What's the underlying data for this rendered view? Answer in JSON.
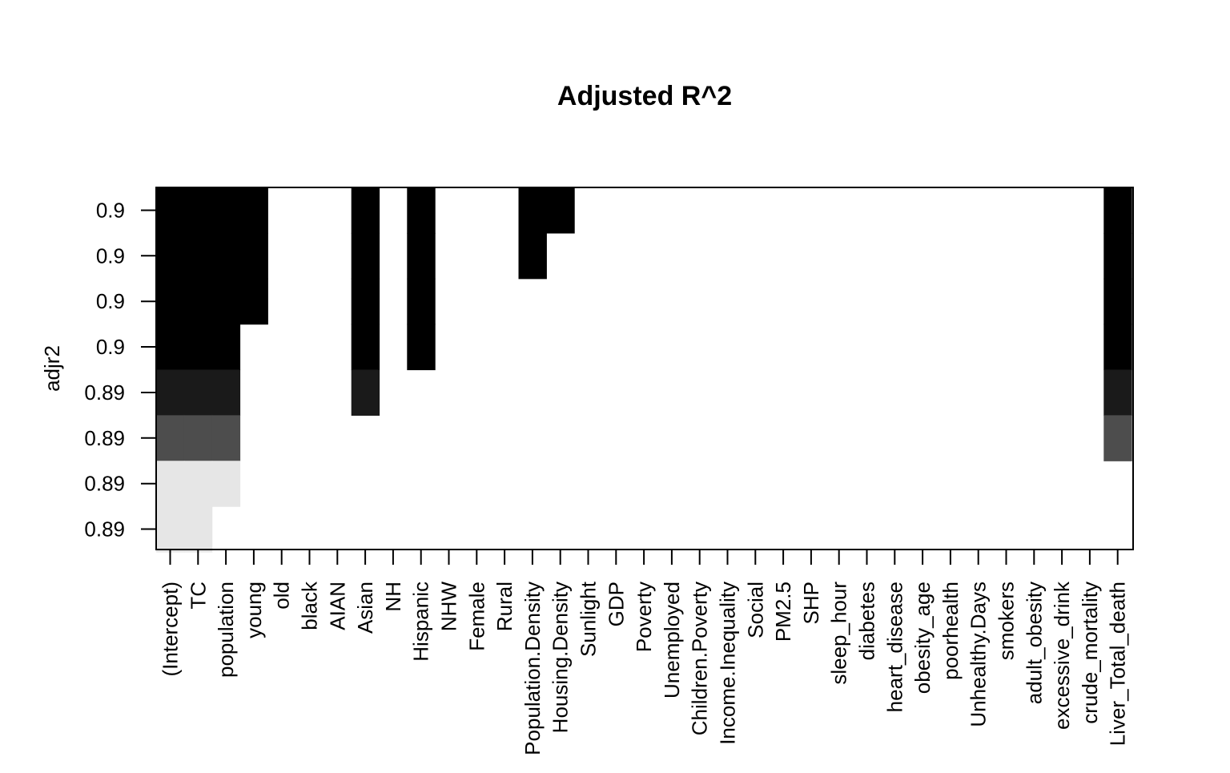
{
  "chart_data": {
    "type": "heatmap",
    "title": "Adjusted R^2",
    "xlabel": "",
    "ylabel": "adjr2",
    "x": [
      "(Intercept)",
      "TC",
      "population",
      "young",
      "old",
      "black",
      "AIAN",
      "Asian",
      "NH",
      "Hispanic",
      "NHW",
      "Female",
      "Rural",
      "Population.Density",
      "Housing.Density",
      "Sunlight",
      "GDP",
      "Poverty",
      "Unemployed",
      "Children.Poverty",
      "Income.Inequality",
      "Social",
      "PM2.5",
      "SHP",
      "sleep_hour",
      "diabetes",
      "heart_disease",
      "obesity_age",
      "poorhealth",
      "Unhealthy.Days",
      "smokers",
      "adult_obesity",
      "excessive_drink",
      "crude_mortality",
      "Liver_Total_death"
    ],
    "y_tick_labels": [
      "0.89",
      "0.89",
      "0.89",
      "0.89",
      "0.9",
      "0.9",
      "0.9",
      "0.9"
    ],
    "row_shades": [
      "#000000",
      "#000000",
      "#000000",
      "#000000",
      "#1a1a1a",
      "#4d4d4d",
      "#e6e6e6",
      "#e6e6e6"
    ],
    "models": [
      {
        "included": [
          "(Intercept)",
          "TC",
          "population",
          "young",
          "Asian",
          "Hispanic",
          "Population.Density",
          "Housing.Density",
          "Liver_Total_death"
        ]
      },
      {
        "included": [
          "(Intercept)",
          "TC",
          "population",
          "young",
          "Asian",
          "Hispanic",
          "Population.Density",
          "Liver_Total_death"
        ]
      },
      {
        "included": [
          "(Intercept)",
          "TC",
          "population",
          "young",
          "Asian",
          "Hispanic",
          "Liver_Total_death"
        ]
      },
      {
        "included": [
          "(Intercept)",
          "TC",
          "population",
          "Asian",
          "Hispanic",
          "Liver_Total_death"
        ]
      },
      {
        "included": [
          "(Intercept)",
          "TC",
          "population",
          "Asian",
          "Liver_Total_death"
        ]
      },
      {
        "included": [
          "(Intercept)",
          "TC",
          "population",
          "Liver_Total_death"
        ]
      },
      {
        "included": [
          "(Intercept)",
          "TC",
          "population"
        ]
      },
      {
        "included": [
          "(Intercept)",
          "TC"
        ]
      }
    ],
    "grid": false,
    "legend": "none"
  }
}
